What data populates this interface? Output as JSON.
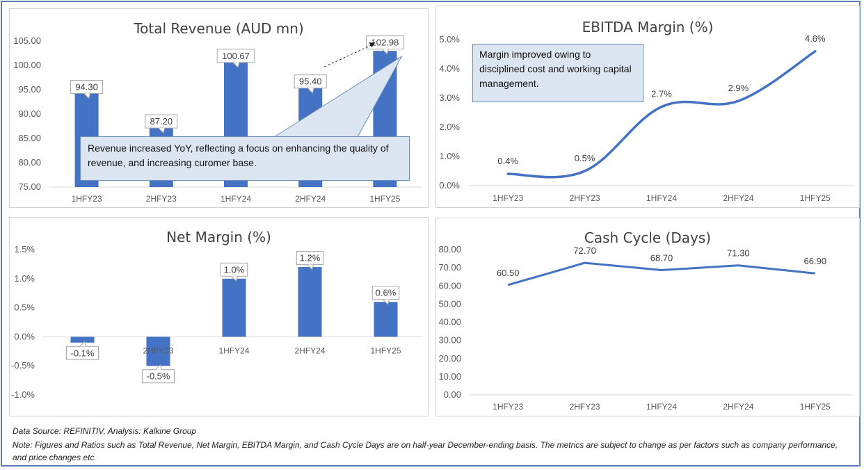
{
  "chart_data": [
    {
      "type": "bar",
      "id": "total-revenue",
      "title": "Total Revenue (AUD mn)",
      "categories": [
        "1HFY23",
        "2HFY23",
        "1HFY24",
        "2HFY24",
        "1HFY25"
      ],
      "values": [
        94.3,
        87.2,
        100.67,
        95.4,
        102.98
      ],
      "data_labels": [
        "94.30",
        "87.20",
        "100.67",
        "95.40",
        "102.98"
      ],
      "yticks": [
        "75.00",
        "80.00",
        "85.00",
        "90.00",
        "95.00",
        "100.00",
        "105.00"
      ],
      "ylim": [
        75,
        105
      ],
      "color": "#4472c4",
      "annotation": "Revenue increased YoY, reflecting a focus on enhancing the quality of revenue, and increasing curomer base."
    },
    {
      "type": "line",
      "id": "ebitda-margin",
      "title": "EBITDA Margin (%)",
      "categories": [
        "1HFY23",
        "2HFY23",
        "1HFY24",
        "2HFY24",
        "1HFY25"
      ],
      "values": [
        0.4,
        0.5,
        2.7,
        2.9,
        4.6
      ],
      "data_labels": [
        "0.4%",
        "0.5%",
        "2.7%",
        "2.9%",
        "4.6%"
      ],
      "yticks": [
        "0.0%",
        "1.0%",
        "2.0%",
        "3.0%",
        "4.0%",
        "5.0%"
      ],
      "ylim": [
        0,
        5
      ],
      "color": "#4472c4",
      "annotation": "Margin improved owing to disciplined cost and working capital management."
    },
    {
      "type": "bar",
      "id": "net-margin",
      "title": "Net Margin (%)",
      "categories": [
        "1HFY23",
        "2HFY23",
        "1HFY24",
        "2HFY24",
        "1HFY25"
      ],
      "values": [
        -0.1,
        -0.5,
        1.0,
        1.2,
        0.6
      ],
      "data_labels": [
        "-0.1%",
        "-0.5%",
        "1.0%",
        "1.2%",
        "0.6%"
      ],
      "yticks": [
        "-1.0%",
        "-0.5%",
        "0.0%",
        "0.5%",
        "1.0%",
        "1.5%"
      ],
      "ylim": [
        -1,
        1.5
      ],
      "color": "#4472c4"
    },
    {
      "type": "line",
      "id": "cash-cycle",
      "title": "Cash Cycle (Days)",
      "categories": [
        "1HFY23",
        "2HFY23",
        "1HFY24",
        "2HFY24",
        "1HFY25"
      ],
      "values": [
        60.5,
        72.7,
        68.7,
        71.3,
        66.9
      ],
      "data_labels": [
        "60.50",
        "72.70",
        "68.70",
        "71.30",
        "66.90"
      ],
      "yticks": [
        "0.00",
        "10.00",
        "20.00",
        "30.00",
        "40.00",
        "50.00",
        "60.00",
        "70.00",
        "80.00"
      ],
      "ylim": [
        0,
        80
      ],
      "color": "#4472c4"
    }
  ],
  "footer": {
    "source": "Data Source: REFINITIV, Analysis: Kalkine Group",
    "note": "Note: Figures and Ratios such as Total Revenue, Net Margin, EBITDA Margin, and Cash Cycle Days are on half-year December-ending basis. The metrics are subject to change as per factors such as company performance, and price changes etc."
  }
}
